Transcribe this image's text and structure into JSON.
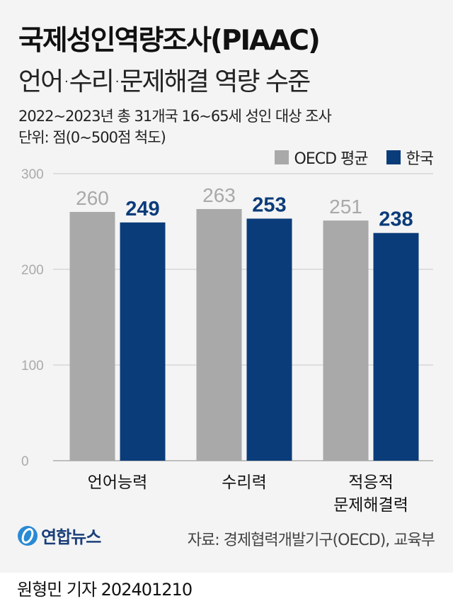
{
  "title": "국제성인역량조사(PIAAC)",
  "subtitle": "언어·수리·문제해결 역량 수준",
  "notes": [
    "2022~2023년 총 31개국 16~65세 성인 대상 조사",
    "단위: 점(0~500점 척도)"
  ],
  "source": "자료: 경제협력개발기구(OECD), 교육부",
  "logo_text": "연합뉴스",
  "byline": "원형민 기자  202401210",
  "colors": {
    "oecd": "#a9a9a9",
    "korea": "#0b3c7a",
    "grid": "#c8c8c8"
  },
  "chart_data": {
    "type": "bar",
    "categories": [
      [
        "언어능력"
      ],
      [
        "수리력"
      ],
      [
        "적응적",
        "문제해결력"
      ]
    ],
    "series": [
      {
        "name": "OECD 평균",
        "values": [
          260,
          263,
          251
        ]
      },
      {
        "name": "한국",
        "values": [
          249,
          253,
          238
        ]
      }
    ],
    "yticks": [
      "0",
      "100",
      "200",
      "300"
    ],
    "ylim": [
      0,
      300
    ],
    "grid": true,
    "legend": "top-right"
  }
}
